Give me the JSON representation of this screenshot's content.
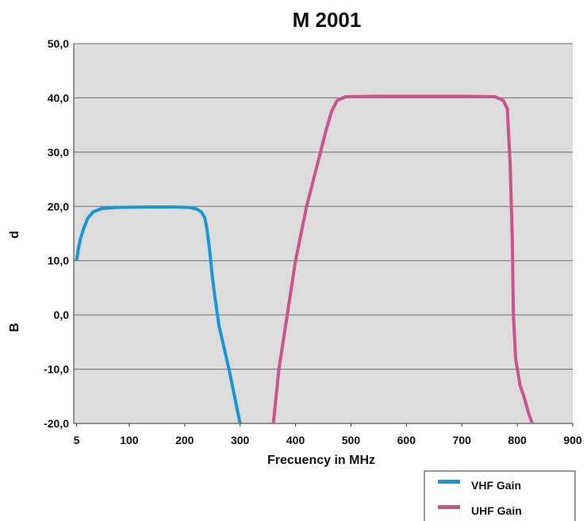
{
  "chart_data": {
    "type": "line",
    "title": "M 2001",
    "xlabel": "Frecuency in MHz",
    "ylabel_top": "d",
    "ylabel_bottom": "B",
    "xlim": [
      0,
      900
    ],
    "ylim": [
      -20,
      50
    ],
    "x_ticks": [
      {
        "value": 5,
        "label": "5"
      },
      {
        "value": 100,
        "label": "100"
      },
      {
        "value": 200,
        "label": "200"
      },
      {
        "value": 300,
        "label": "300"
      },
      {
        "value": 400,
        "label": "400"
      },
      {
        "value": 500,
        "label": "500"
      },
      {
        "value": 600,
        "label": "600"
      },
      {
        "value": 700,
        "label": "700"
      },
      {
        "value": 800,
        "label": "800"
      },
      {
        "value": 900,
        "label": "900"
      }
    ],
    "y_ticks": [
      {
        "value": 50,
        "label": "50,0"
      },
      {
        "value": 40,
        "label": "40,0"
      },
      {
        "value": 30,
        "label": "30,0"
      },
      {
        "value": 20,
        "label": "20,0"
      },
      {
        "value": 10,
        "label": "10,0"
      },
      {
        "value": 0,
        "label": "0,0"
      },
      {
        "value": -10,
        "label": "-10,0"
      },
      {
        "value": -20,
        "label": "-20,0"
      }
    ],
    "grid": true,
    "plot_background": "#dcdcdc",
    "legend_position": "bottom-right",
    "series": [
      {
        "name": "VHF Gain",
        "color": "#1a96d4",
        "points": [
          [
            5,
            10.0
          ],
          [
            8,
            12.0
          ],
          [
            12,
            14.0
          ],
          [
            18,
            16.0
          ],
          [
            25,
            17.8
          ],
          [
            35,
            19.0
          ],
          [
            50,
            19.6
          ],
          [
            75,
            19.8
          ],
          [
            130,
            19.9
          ],
          [
            180,
            19.9
          ],
          [
            210,
            19.8
          ],
          [
            222,
            19.5
          ],
          [
            230,
            19.0
          ],
          [
            236,
            18.0
          ],
          [
            240,
            16.0
          ],
          [
            245,
            12.0
          ],
          [
            250,
            7.0
          ],
          [
            255,
            3.0
          ],
          [
            262,
            -2.0
          ],
          [
            280,
            -10.0
          ],
          [
            300,
            -20.0
          ]
        ]
      },
      {
        "name": "UHF Gain",
        "color": "#c9558a",
        "points": [
          [
            360,
            -20.0
          ],
          [
            370,
            -10.0
          ],
          [
            385,
            0.0
          ],
          [
            400,
            10.0
          ],
          [
            420,
            20.0
          ],
          [
            440,
            28.0
          ],
          [
            455,
            34.0
          ],
          [
            465,
            37.5
          ],
          [
            475,
            39.5
          ],
          [
            490,
            40.2
          ],
          [
            550,
            40.3
          ],
          [
            700,
            40.3
          ],
          [
            760,
            40.2
          ],
          [
            775,
            39.5
          ],
          [
            782,
            38.0
          ],
          [
            787,
            28.0
          ],
          [
            791,
            14.0
          ],
          [
            793,
            0.0
          ],
          [
            797,
            -8.0
          ],
          [
            805,
            -13.0
          ],
          [
            812,
            -15.0
          ],
          [
            820,
            -18.0
          ],
          [
            827,
            -20.0
          ]
        ]
      }
    ]
  }
}
